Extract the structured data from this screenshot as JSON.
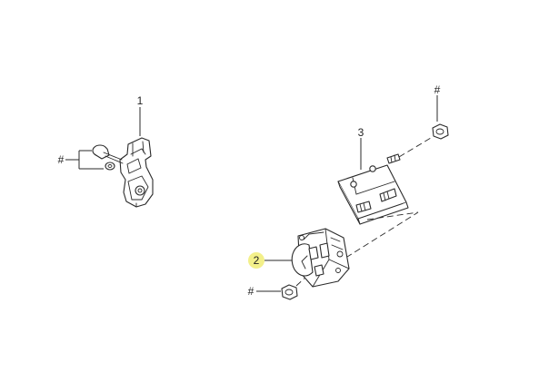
{
  "callouts": {
    "part_1": "1",
    "part_2": "2",
    "part_3": "3",
    "hash_left": "#",
    "hash_top_right": "#",
    "hash_bottom": "#"
  },
  "colors": {
    "highlight": "#f3f08a",
    "line": "#2a2a2a",
    "background": "#ffffff"
  }
}
